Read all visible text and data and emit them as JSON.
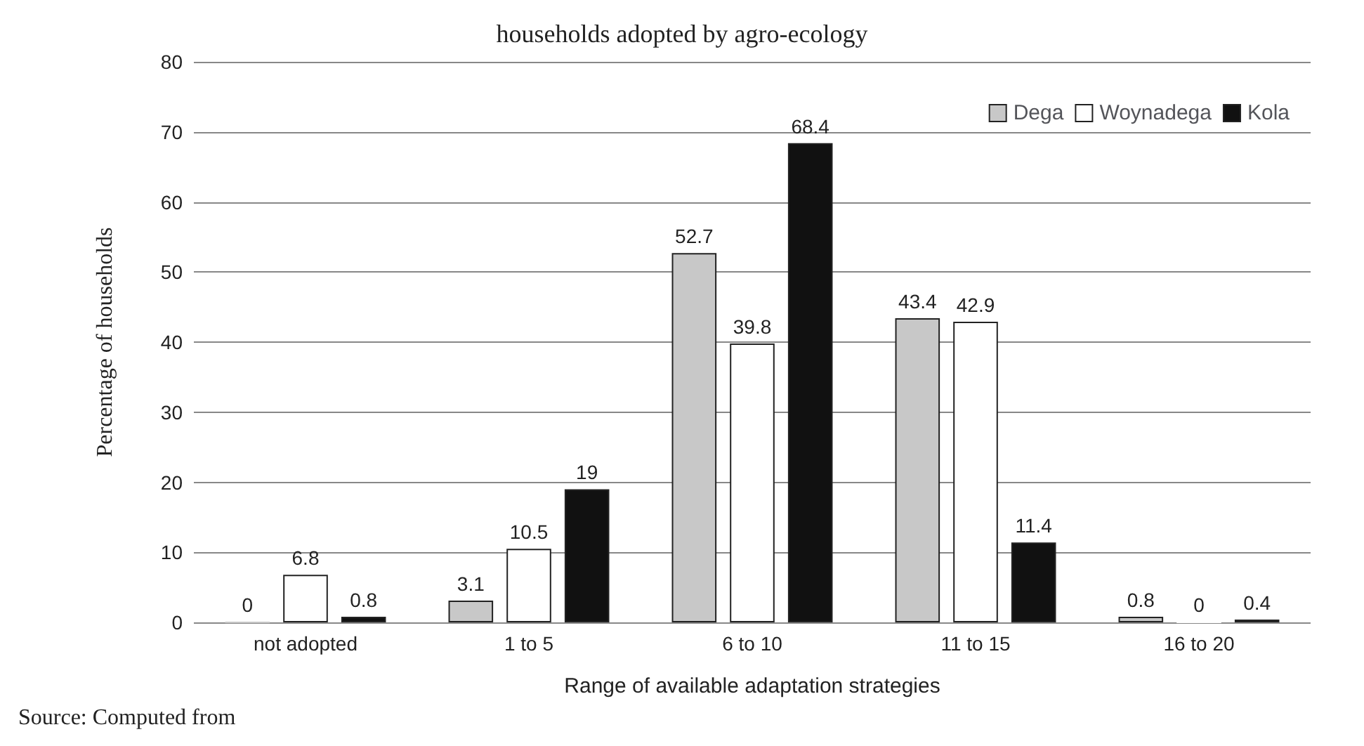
{
  "chart_data": {
    "type": "bar",
    "title": "households adopted by agro-ecology",
    "xlabel": "Range of available adaptation strategies",
    "ylabel": "Percentage of households",
    "categories": [
      "not adopted",
      "1 to 5",
      "6 to 10",
      "11 to 15",
      "16 to 20"
    ],
    "series": [
      {
        "name": "Dega",
        "color": "#c8c8c8",
        "values": [
          0,
          3.1,
          52.7,
          43.4,
          0.8
        ]
      },
      {
        "name": "Woynadega",
        "color": "#ffffff",
        "values": [
          6.8,
          10.5,
          39.8,
          42.9,
          0
        ]
      },
      {
        "name": "Kola",
        "color": "#111111",
        "values": [
          0.8,
          19,
          68.4,
          11.4,
          0.4
        ]
      }
    ],
    "ylim": [
      0,
      80
    ],
    "yticks": [
      0,
      10,
      20,
      30,
      40,
      50,
      60,
      70,
      80
    ],
    "grid": "y",
    "legend": "top right",
    "data_labels": true,
    "annotations": [
      "Source: Computed from"
    ]
  }
}
